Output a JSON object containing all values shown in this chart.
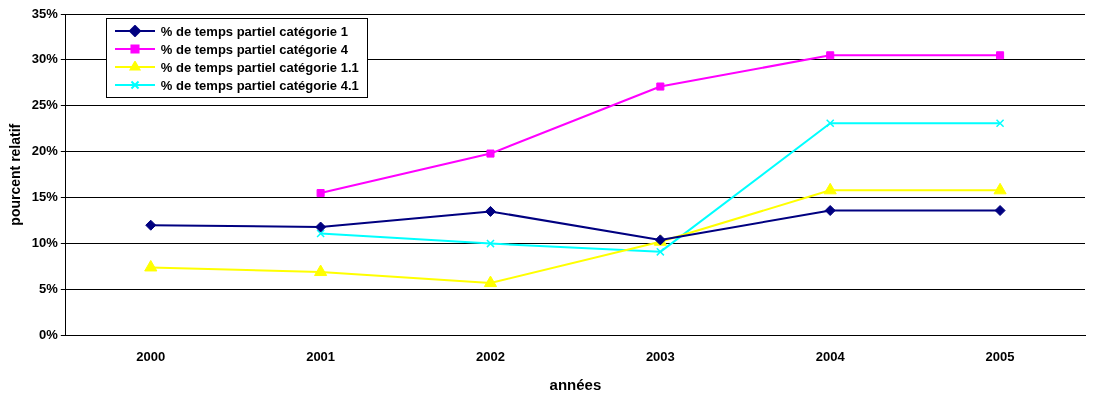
{
  "chart_data": {
    "type": "line",
    "xlabel": "années",
    "ylabel": "pourcent relatif",
    "categories": [
      "2000",
      "2001",
      "2002",
      "2003",
      "2004",
      "2005"
    ],
    "series": [
      {
        "name": "% de temps partiel catégorie 1",
        "color": "#000080",
        "marker": "diamond",
        "values": [
          12.0,
          11.8,
          13.5,
          10.4,
          13.6,
          13.6
        ]
      },
      {
        "name": "% de temps partiel catégorie 4",
        "color": "#ff00ff",
        "marker": "square",
        "values": [
          null,
          15.5,
          19.8,
          27.1,
          30.5,
          30.5
        ]
      },
      {
        "name": "% de temps partiel catégorie 1.1",
        "color": "#ffff00",
        "marker": "triangle",
        "values": [
          7.4,
          6.9,
          5.7,
          10.2,
          15.8,
          15.8
        ]
      },
      {
        "name": "% de temps partiel catégorie 4.1",
        "color": "#00ffff",
        "marker": "cross",
        "values": [
          null,
          11.1,
          10.0,
          9.1,
          23.1,
          23.1
        ]
      }
    ],
    "ylim": [
      0,
      35
    ],
    "yticks": [
      {
        "value": 0,
        "label": "0%"
      },
      {
        "value": 5,
        "label": "5%"
      },
      {
        "value": 10,
        "label": "10%"
      },
      {
        "value": 15,
        "label": "15%"
      },
      {
        "value": 20,
        "label": "20%"
      },
      {
        "value": 25,
        "label": "25%"
      },
      {
        "value": 30,
        "label": "30%"
      },
      {
        "value": 35,
        "label": "35%"
      }
    ],
    "grid": "y",
    "legend": "top left"
  }
}
